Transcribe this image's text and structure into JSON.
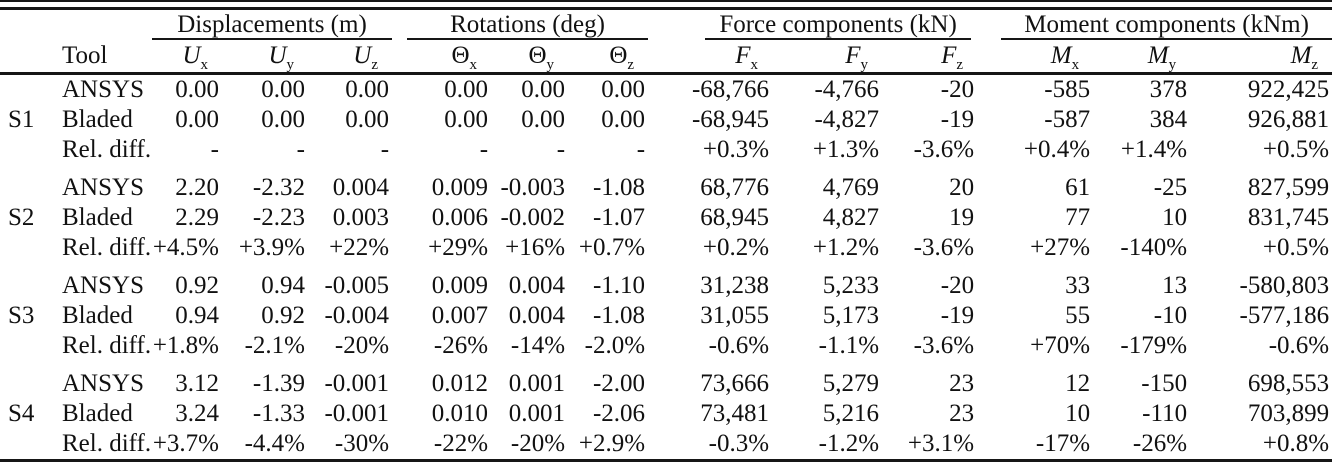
{
  "table": {
    "tool_header": "Tool",
    "groups": [
      {
        "label": "Displacements (m)"
      },
      {
        "label": "Rotations (deg)"
      },
      {
        "label": "Force components (kN)"
      },
      {
        "label": "Moment components (kNm)"
      }
    ],
    "columns": [
      {
        "base": "U",
        "sub": "x"
      },
      {
        "base": "U",
        "sub": "y"
      },
      {
        "base": "U",
        "sub": "z"
      },
      {
        "base": "Θ",
        "sub": "x"
      },
      {
        "base": "Θ",
        "sub": "y"
      },
      {
        "base": "Θ",
        "sub": "z"
      },
      {
        "base": "F",
        "sub": "x"
      },
      {
        "base": "F",
        "sub": "y"
      },
      {
        "base": "F",
        "sub": "z"
      },
      {
        "base": "M",
        "sub": "x"
      },
      {
        "base": "M",
        "sub": "y"
      },
      {
        "base": "M",
        "sub": "z"
      }
    ],
    "row_groups": [
      {
        "station": "S1",
        "rows": [
          {
            "tool": "ANSYS",
            "values": [
              "0.00",
              "0.00",
              "0.00",
              "0.00",
              "0.00",
              "0.00",
              "-68,766",
              "-4,766",
              "-20",
              "-585",
              "378",
              "922,425"
            ]
          },
          {
            "tool": "Bladed",
            "values": [
              "0.00",
              "0.00",
              "0.00",
              "0.00",
              "0.00",
              "0.00",
              "-68,945",
              "-4,827",
              "-19",
              "-587",
              "384",
              "926,881"
            ]
          },
          {
            "tool": "Rel. diff.",
            "values": [
              "-",
              "-",
              "-",
              "-",
              "-",
              "-",
              "+0.3%",
              "+1.3%",
              "-3.6%",
              "+0.4%",
              "+1.4%",
              "+0.5%"
            ]
          }
        ]
      },
      {
        "station": "S2",
        "rows": [
          {
            "tool": "ANSYS",
            "values": [
              "2.20",
              "-2.32",
              "0.004",
              "0.009",
              "-0.003",
              "-1.08",
              "68,776",
              "4,769",
              "20",
              "61",
              "-25",
              "827,599"
            ]
          },
          {
            "tool": "Bladed",
            "values": [
              "2.29",
              "-2.23",
              "0.003",
              "0.006",
              "-0.002",
              "-1.07",
              "68,945",
              "4,827",
              "19",
              "77",
              "10",
              "831,745"
            ]
          },
          {
            "tool": "Rel. diff.",
            "values": [
              "+4.5%",
              "+3.9%",
              "+22%",
              "+29%",
              "+16%",
              "+0.7%",
              "+0.2%",
              "+1.2%",
              "-3.6%",
              "+27%",
              "-140%",
              "+0.5%"
            ]
          }
        ]
      },
      {
        "station": "S3",
        "rows": [
          {
            "tool": "ANSYS",
            "values": [
              "0.92",
              "0.94",
              "-0.005",
              "0.009",
              "0.004",
              "-1.10",
              "31,238",
              "5,233",
              "-20",
              "33",
              "13",
              "-580,803"
            ]
          },
          {
            "tool": "Bladed",
            "values": [
              "0.94",
              "0.92",
              "-0.004",
              "0.007",
              "0.004",
              "-1.08",
              "31,055",
              "5,173",
              "-19",
              "55",
              "-10",
              "-577,186"
            ]
          },
          {
            "tool": "Rel. diff.",
            "values": [
              "+1.8%",
              "-2.1%",
              "-20%",
              "-26%",
              "-14%",
              "-2.0%",
              "-0.6%",
              "-1.1%",
              "-3.6%",
              "+70%",
              "-179%",
              "-0.6%"
            ]
          }
        ]
      },
      {
        "station": "S4",
        "rows": [
          {
            "tool": "ANSYS",
            "values": [
              "3.12",
              "-1.39",
              "-0.001",
              "0.012",
              "0.001",
              "-2.00",
              "73,666",
              "5,279",
              "23",
              "12",
              "-150",
              "698,553"
            ]
          },
          {
            "tool": "Bladed",
            "values": [
              "3.24",
              "-1.33",
              "-0.001",
              "0.010",
              "0.001",
              "-2.06",
              "73,481",
              "5,216",
              "23",
              "10",
              "-110",
              "703,899"
            ]
          },
          {
            "tool": "Rel. diff.",
            "values": [
              "+3.7%",
              "-4.4%",
              "-30%",
              "-22%",
              "-20%",
              "+2.9%",
              "-0.3%",
              "-1.2%",
              "+3.1%",
              "-17%",
              "-26%",
              "+0.8%"
            ]
          }
        ]
      }
    ]
  }
}
